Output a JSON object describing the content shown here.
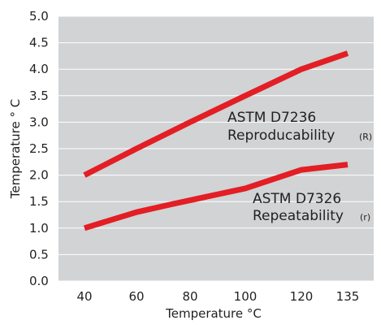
{
  "chart_data": {
    "type": "line",
    "xlabel": "Temperature °C",
    "ylabel": "Temperature ° C",
    "x_ticks": [
      "40",
      "60",
      "80",
      "100",
      "120",
      "135"
    ],
    "y_ticks": [
      "0.0",
      "0.5",
      "1.0",
      "1.5",
      "2.0",
      "2.5",
      "3.0",
      "3.5",
      "4.0",
      "4.5",
      "5.0"
    ],
    "ylim": [
      0,
      5
    ],
    "grid": "horizontal",
    "plot_background": "#d1d3d4",
    "series": [
      {
        "x": [
          40,
          60,
          80,
          100,
          120,
          135
        ],
        "values": [
          2.0,
          2.5,
          3.0,
          3.5,
          4.0,
          4.3
        ],
        "color": "#e31e25"
      },
      {
        "x": [
          40,
          60,
          73,
          100,
          120,
          135
        ],
        "values": [
          1.0,
          1.3,
          1.45,
          1.75,
          2.1,
          2.2
        ],
        "color": "#e31e25"
      }
    ],
    "annotations": [
      {
        "line1": "ASTM D7236",
        "line2": "Reproducability",
        "suffix": "(R)"
      },
      {
        "line1": "ASTM D7326",
        "line2": "Repeatability",
        "suffix": "(r)"
      }
    ]
  }
}
